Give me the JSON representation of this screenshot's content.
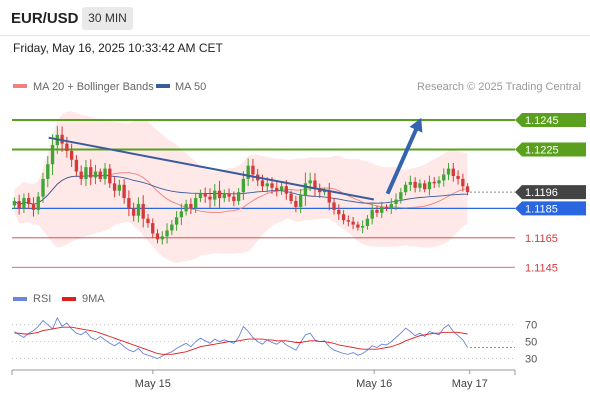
{
  "header": {
    "symbol": "EUR/USD",
    "timeframe": "30 MIN",
    "datetime": "Friday, May 16, 2025 10:33:42 AM CET"
  },
  "legend": {
    "ma20": "MA 20 + Bollinger Bands",
    "ma50": "MA 50",
    "credit": "Research © 2025 Trading Central",
    "ma20_color": "#f08080",
    "ma50_color": "#3b5b9a"
  },
  "chart_data": [
    {
      "type": "candlestick",
      "title": "",
      "ylim": [
        1.1135,
        1.1262
      ],
      "price_labels": [
        {
          "label": "1.1245",
          "value": 1.1245,
          "style": "resistance",
          "color": "#5aa01e"
        },
        {
          "label": "1.1225",
          "value": 1.1225,
          "style": "resistance",
          "color": "#5aa01e"
        },
        {
          "label": "1.1196",
          "value": 1.1196,
          "style": "last-price",
          "color": "#444444"
        },
        {
          "label": "1.1185",
          "value": 1.1185,
          "style": "pivot",
          "color": "#2a66e0"
        },
        {
          "label": "1.1165",
          "value": 1.1165,
          "style": "support",
          "color": "#d33a3a"
        },
        {
          "label": "1.1145",
          "value": 1.1145,
          "style": "support",
          "color": "#d33a3a"
        }
      ],
      "trendline": [
        [
          0.08,
          1.1233
        ],
        [
          0.79,
          1.1191
        ]
      ],
      "target_arrow": [
        [
          0.82,
          1.1195
        ],
        [
          0.89,
          1.1244
        ]
      ],
      "x_labels": [
        {
          "label": "May 15",
          "position": 0.28
        },
        {
          "label": "May 16",
          "position": 0.72
        },
        {
          "label": "May 17",
          "position": 0.91
        }
      ],
      "closes": [
        1.119,
        1.1185,
        1.1192,
        1.1188,
        1.1184,
        1.1193,
        1.1205,
        1.1215,
        1.1228,
        1.1235,
        1.1229,
        1.1224,
        1.1218,
        1.121,
        1.1205,
        1.1213,
        1.1206,
        1.121,
        1.1205,
        1.1212,
        1.1202,
        1.1197,
        1.1201,
        1.1192,
        1.1185,
        1.118,
        1.1188,
        1.1178,
        1.1175,
        1.1168,
        1.1164,
        1.1166,
        1.117,
        1.1174,
        1.1179,
        1.1183,
        1.1188,
        1.1185,
        1.1192,
        1.1195,
        1.1193,
        1.1191,
        1.1197,
        1.1192,
        1.1195,
        1.1193,
        1.119,
        1.1196,
        1.1205,
        1.1214,
        1.1208,
        1.1204,
        1.12,
        1.1202,
        1.1199,
        1.1197,
        1.12,
        1.1195,
        1.119,
        1.1186,
        1.1194,
        1.1202,
        1.1204,
        1.1198,
        1.1196,
        1.1197,
        1.1189,
        1.1184,
        1.1181,
        1.1177,
        1.1176,
        1.1174,
        1.1172,
        1.1173,
        1.1178,
        1.1184,
        1.1182,
        1.1186,
        1.1185,
        1.1188,
        1.1191,
        1.1196,
        1.1201,
        1.1203,
        1.1199,
        1.1202,
        1.1198,
        1.1203,
        1.1202,
        1.1204,
        1.1208,
        1.1212,
        1.1207,
        1.1205,
        1.12,
        1.1196
      ],
      "ranges": [
        0.0007,
        0.0012,
        0.0009,
        0.001,
        0.0013,
        0.0009,
        0.0012,
        0.0016,
        0.0021,
        0.0017,
        0.0016,
        0.0013,
        0.0014,
        0.0009,
        0.0012,
        0.0014,
        0.0015,
        0.0013,
        0.0006,
        0.0011,
        0.0009,
        0.0013,
        0.001,
        0.0011,
        0.0015,
        0.0011,
        0.0013,
        0.0017,
        0.0009,
        0.0009,
        0.0008,
        0.001,
        0.0014,
        0.0009,
        0.0012,
        0.0015,
        0.0008,
        0.0011,
        0.0009,
        0.0008,
        0.0012,
        0.0016,
        0.0013,
        0.0019,
        0.0008,
        0.001,
        0.001,
        0.0008,
        0.0015,
        0.0014,
        0.0013,
        0.0011,
        0.0011,
        0.0012,
        0.0012,
        0.0011,
        0.0008,
        0.0012,
        0.0006,
        0.001,
        0.0012,
        0.0021,
        0.0015,
        0.0014,
        0.0011,
        0.0006,
        0.0015,
        0.0009,
        0.0011,
        0.0008,
        0.0009,
        0.0009,
        0.0006,
        0.0011,
        0.0007,
        0.0011,
        0.0008,
        0.001,
        0.0005,
        0.0011,
        0.0012,
        0.0008,
        0.0006,
        0.0012,
        0.0009,
        0.0008,
        0.0006,
        0.0012,
        0.0009,
        0.0008,
        0.0012,
        0.0011,
        0.0011,
        0.0011,
        0.001,
        0.0006
      ],
      "colors": {
        "up": "#3fa535",
        "down": "#d33a3a"
      }
    },
    {
      "type": "line",
      "title": "",
      "ylim": [
        20,
        85
      ],
      "levels": [
        {
          "label": "70",
          "value": 70
        },
        {
          "label": "50",
          "value": 50
        },
        {
          "label": "30",
          "value": 30
        }
      ],
      "series": [
        {
          "name": "RSI",
          "color": "#6a85d9",
          "values": [
            62,
            58,
            55,
            60,
            63,
            68,
            75,
            70,
            65,
            78,
            68,
            72,
            65,
            60,
            58,
            62,
            55,
            52,
            56,
            52,
            48,
            45,
            49,
            44,
            40,
            38,
            42,
            36,
            34,
            32,
            30,
            33,
            36,
            38,
            42,
            45,
            48,
            44,
            50,
            54,
            51,
            48,
            53,
            50,
            52,
            50,
            48,
            55,
            68,
            62,
            55,
            50,
            47,
            52,
            49,
            47,
            51,
            46,
            43,
            40,
            49,
            58,
            60,
            52,
            50,
            51,
            44,
            40,
            38,
            36,
            35,
            37,
            34,
            36,
            40,
            45,
            43,
            47,
            46,
            50,
            55,
            60,
            66,
            62,
            57,
            60,
            56,
            62,
            60,
            58,
            66,
            70,
            62,
            57,
            52,
            43
          ]
        },
        {
          "name": "9MA",
          "color": "#e01e1e",
          "values": [
            60,
            60,
            59,
            59,
            60,
            61,
            63,
            64,
            65,
            66,
            67,
            67,
            67,
            66,
            65,
            64,
            63,
            62,
            60,
            58,
            56,
            54,
            52,
            50,
            48,
            46,
            44,
            42,
            40,
            38,
            36,
            35,
            35,
            35,
            36,
            37,
            38,
            40,
            42,
            44,
            45,
            46,
            47,
            48,
            49,
            50,
            50,
            51,
            52,
            53,
            53,
            53,
            53,
            52,
            52,
            51,
            51,
            51,
            50,
            49,
            49,
            50,
            51,
            51,
            50,
            50,
            49,
            48,
            46,
            45,
            44,
            43,
            42,
            41,
            41,
            41,
            41,
            42,
            43,
            44,
            46,
            48,
            51,
            53,
            55,
            57,
            58,
            59,
            60,
            60,
            61,
            61,
            61,
            61,
            60,
            59
          ]
        }
      ],
      "x_labels": [
        {
          "label": "May 15",
          "position": 0.28
        },
        {
          "label": "May 16",
          "position": 0.72
        },
        {
          "label": "May 17",
          "position": 0.91
        }
      ]
    }
  ]
}
